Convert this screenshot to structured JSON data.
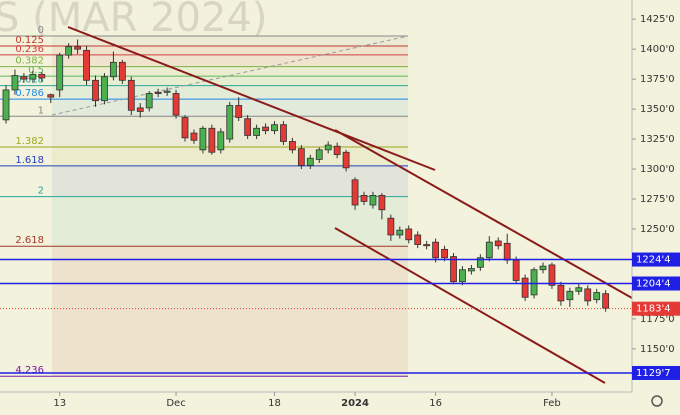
{
  "chart_data": {
    "type": "candlestick",
    "title": "S (MAR 2024)",
    "categories": [
      null,
      null,
      null,
      null,
      null,
      null,
      "13",
      null,
      null,
      null,
      null,
      null,
      null,
      null,
      null,
      null,
      null,
      null,
      null,
      "Dec",
      null,
      null,
      null,
      null,
      null,
      null,
      null,
      null,
      null,
      null,
      "18",
      null,
      null,
      null,
      null,
      null,
      null,
      null,
      null,
      "2024",
      null,
      null,
      null,
      null,
      null,
      null,
      null,
      null,
      "16",
      null,
      null,
      null,
      null,
      null,
      null,
      null,
      null,
      null,
      null,
      null,
      null,
      "Feb",
      null,
      null,
      null,
      null,
      null,
      null
    ],
    "open": [
      1341,
      1366,
      1377,
      1375,
      1379,
      1362,
      1366,
      1395,
      1402,
      1399,
      1374,
      1357,
      1377,
      1389,
      1374,
      1351,
      1351,
      1364,
      1364,
      1363,
      1343,
      1330,
      1316,
      1334,
      1316,
      1325,
      1353,
      1342,
      1328,
      1335,
      1332,
      1337,
      1323,
      1317,
      1303,
      1308,
      1316,
      1319,
      1314,
      1291,
      1278,
      1270,
      1278,
      1259,
      1245,
      1250,
      1245,
      1237,
      1239,
      1233,
      1227,
      1206,
      1215,
      1218,
      1226,
      1240,
      1238,
      1224,
      1209,
      1195,
      1216,
      1220,
      1203,
      1191,
      1198,
      1200,
      1191,
      1196
    ],
    "high": [
      1370,
      1383,
      1380,
      1382,
      1381,
      1363,
      1397,
      1405,
      1408,
      1403,
      1378,
      1380,
      1398,
      1391,
      1377,
      1355,
      1365,
      1367,
      1368,
      1366,
      1345,
      1333,
      1336,
      1337,
      1334,
      1356,
      1360,
      1345,
      1337,
      1338,
      1340,
      1340,
      1326,
      1320,
      1312,
      1318,
      1323,
      1322,
      1316,
      1293,
      1281,
      1281,
      1280,
      1262,
      1252,
      1253,
      1248,
      1240,
      1242,
      1236,
      1230,
      1219,
      1220,
      1229,
      1244,
      1243,
      1246,
      1227,
      1212,
      1218,
      1222,
      1222,
      1206,
      1201,
      1204,
      1203,
      1200,
      1199
    ],
    "low": [
      1338,
      1362,
      1372,
      1372,
      1373,
      1355,
      1360,
      1392,
      1396,
      1370,
      1352,
      1354,
      1374,
      1371,
      1345,
      1343,
      1348,
      1360,
      1361,
      1342,
      1323,
      1321,
      1313,
      1312,
      1313,
      1322,
      1340,
      1325,
      1325,
      1329,
      1329,
      1320,
      1313,
      1300,
      1300,
      1305,
      1313,
      1309,
      1298,
      1266,
      1270,
      1267,
      1258,
      1240,
      1242,
      1238,
      1234,
      1233,
      1222,
      1223,
      1205,
      1203,
      1212,
      1215,
      1223,
      1233,
      1221,
      1204,
      1190,
      1192,
      1213,
      1200,
      1186,
      1185,
      1195,
      1186,
      1188,
      1181
    ],
    "close": [
      1366,
      1378,
      1375,
      1379,
      1376,
      1360,
      1395,
      1402,
      1400,
      1374,
      1357,
      1377,
      1389,
      1374,
      1349,
      1348,
      1363,
      1363,
      1365,
      1345,
      1326,
      1324,
      1334,
      1314,
      1331,
      1353,
      1343,
      1328,
      1334,
      1332,
      1337,
      1323,
      1316,
      1303,
      1309,
      1316,
      1320,
      1312,
      1301,
      1270,
      1273,
      1278,
      1266,
      1245,
      1249,
      1241,
      1237,
      1236,
      1226,
      1226,
      1206,
      1216,
      1217,
      1226,
      1239,
      1236,
      1224,
      1207,
      1193,
      1216,
      1219,
      1203,
      1190,
      1198,
      1201,
      1190,
      1197,
      1184
    ],
    "up_color": "#4caf50",
    "down_color": "#e53935",
    "ylim": [
      1114,
      1441
    ],
    "yticks": [
      {
        "value": 1425,
        "label": "1425'0"
      },
      {
        "value": 1400,
        "label": "1400'0"
      },
      {
        "value": 1375,
        "label": "1375'0"
      },
      {
        "value": 1350,
        "label": "1350'0"
      },
      {
        "value": 1325,
        "label": "1325'0"
      },
      {
        "value": 1300,
        "label": "1300'0"
      },
      {
        "value": 1275,
        "label": "1275'0"
      },
      {
        "value": 1250,
        "label": "1250'0"
      },
      {
        "value": 1175,
        "label": "1175'0"
      },
      {
        "value": 1150,
        "label": "1150'0"
      }
    ],
    "price_lines": [
      {
        "value": 1224.5,
        "label": "1224'4",
        "color": "#1f1fe6"
      },
      {
        "value": 1204.5,
        "label": "1204'4",
        "color": "#1f1fe6"
      },
      {
        "value": 1129.875,
        "label": "1129'7",
        "color": "#1f1fe6"
      },
      {
        "value": 1183.5,
        "label": "1183'4",
        "color": "#e53935"
      }
    ],
    "fib": {
      "start": 1411,
      "end": 1344,
      "levels": [
        0,
        0.125,
        0.236,
        0.382,
        0.5,
        0.618,
        0.786,
        1,
        1.382,
        1.618,
        2,
        2.618,
        4.236
      ],
      "colors": [
        "#888888",
        "#c0392b",
        "#d04040",
        "#7cb342",
        "#5cb85c",
        "#26a69a",
        "#1e88e5",
        "#888888",
        "#9aaa20",
        "#1e3fbf",
        "#26a69a",
        "#a0392b",
        "#7b1fa2"
      ]
    }
  }
}
